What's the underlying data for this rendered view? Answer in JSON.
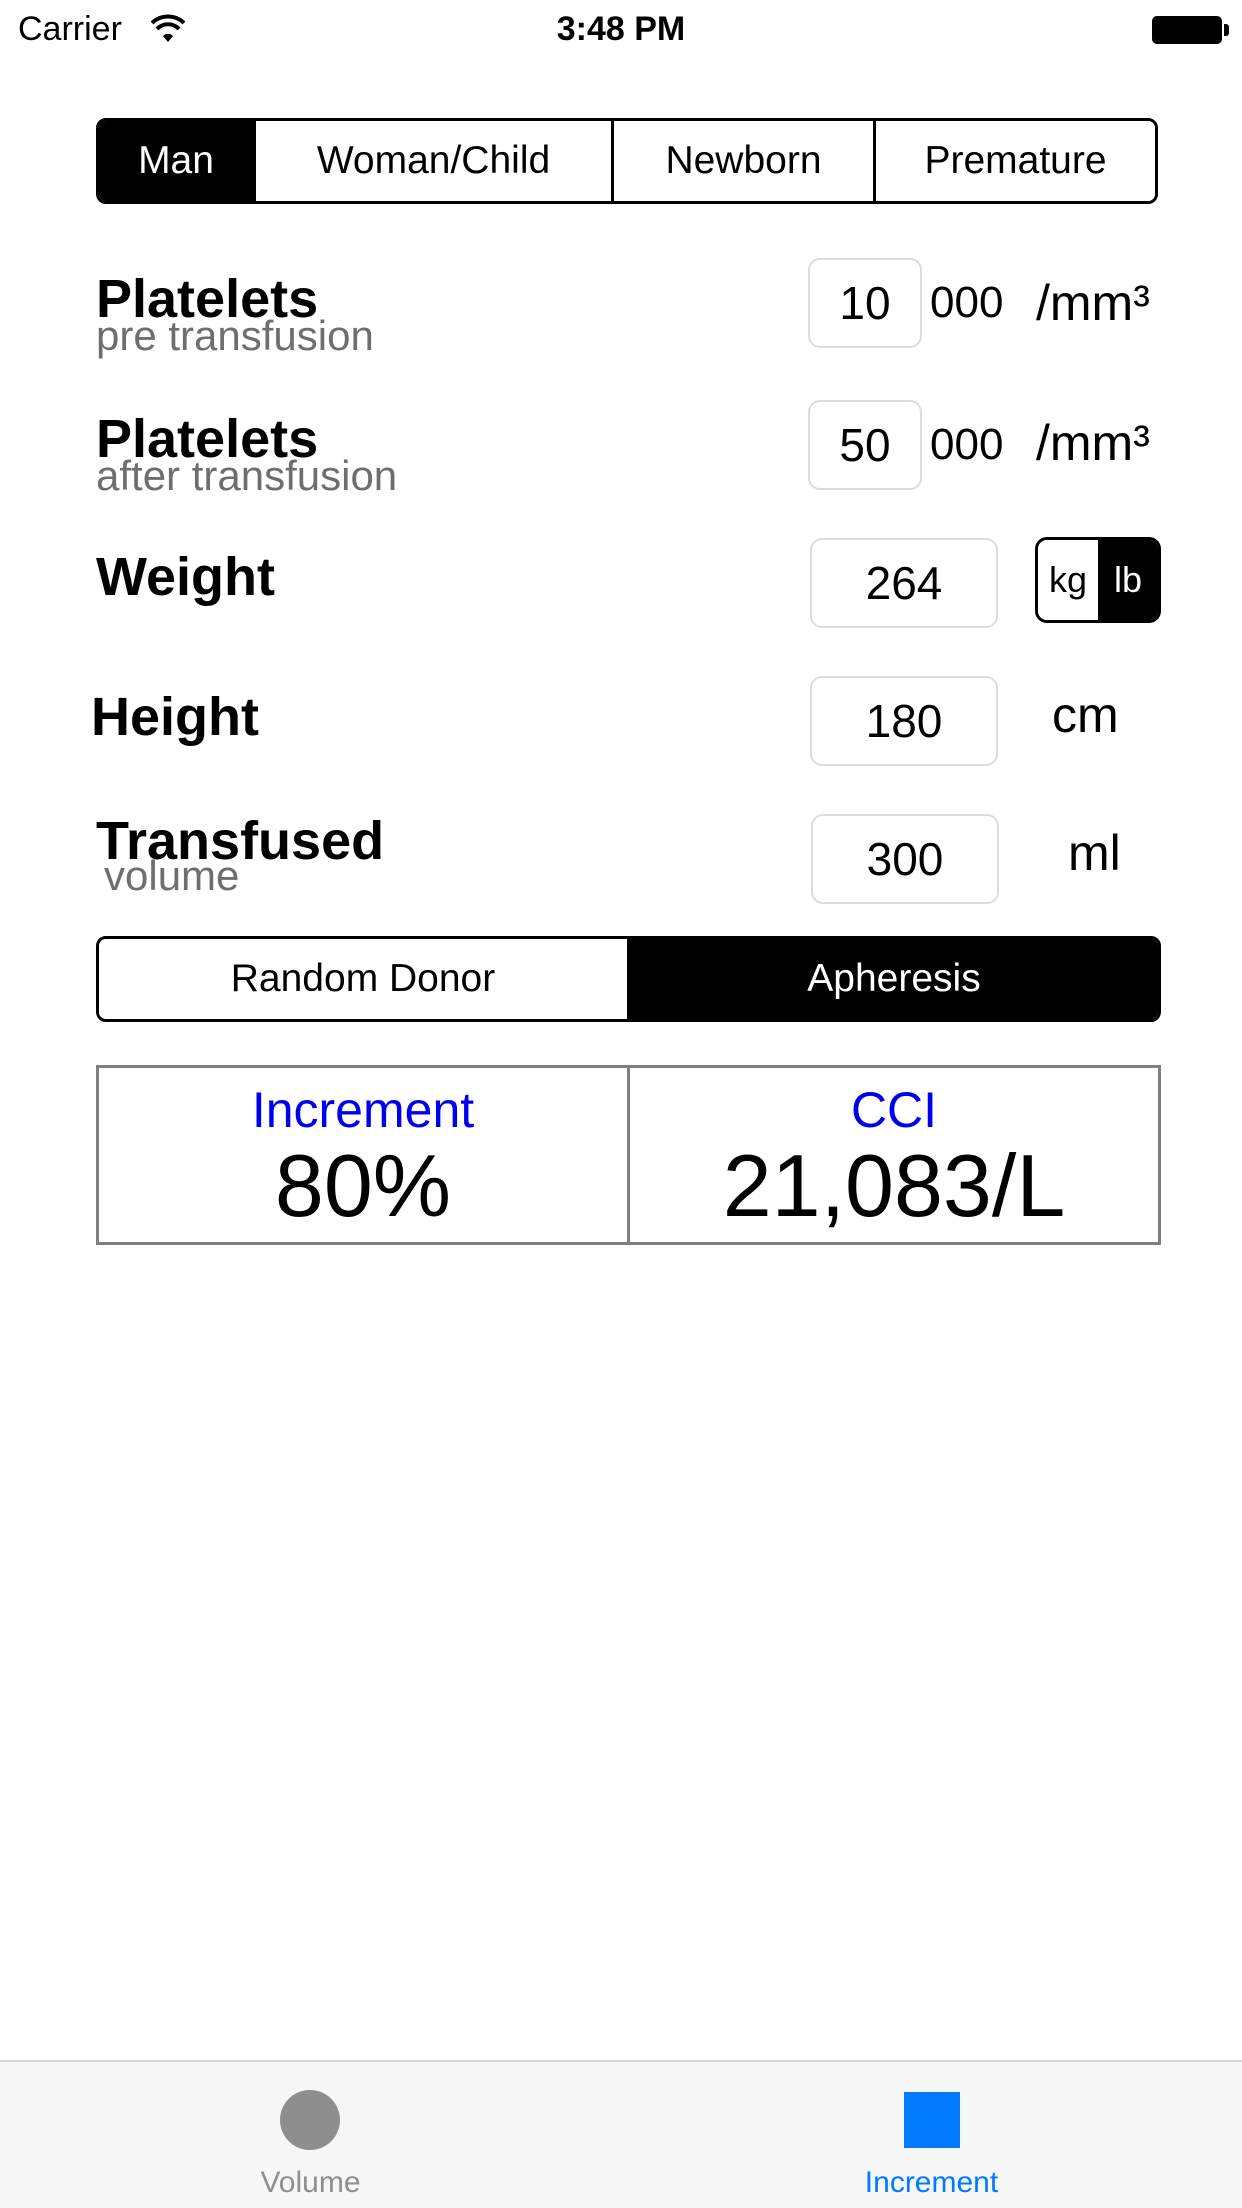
{
  "status_bar": {
    "carrier": "Carrier",
    "time": "3:48 PM"
  },
  "patient_types": [
    {
      "label": "Man",
      "selected": true
    },
    {
      "label": "Woman/Child",
      "selected": false
    },
    {
      "label": "Newborn",
      "selected": false
    },
    {
      "label": "Premature",
      "selected": false
    }
  ],
  "platelets_pre": {
    "label": "Platelets",
    "sublabel": "pre transfusion",
    "value": "10",
    "suffix": "000",
    "unit": "/mm³"
  },
  "platelets_after": {
    "label": "Platelets",
    "sublabel": "after transfusion",
    "value": "50",
    "suffix": "000",
    "unit": "/mm³"
  },
  "weight": {
    "label": "Weight",
    "value": "264",
    "units": [
      "kg",
      "lb"
    ],
    "selected_unit": "lb"
  },
  "height": {
    "label": "Height",
    "value": "180",
    "unit": "cm"
  },
  "transfused": {
    "label": "Transfused",
    "sublabel": "volume",
    "value": "300",
    "unit": "ml"
  },
  "donor_types": [
    {
      "label": "Random Donor",
      "selected": false
    },
    {
      "label": "Apheresis",
      "selected": true
    }
  ],
  "results": {
    "increment_label": "Increment",
    "increment_value": "80%",
    "cci_label": "CCI",
    "cci_value": "21,083/L"
  },
  "tabs": {
    "volume_label": "Volume",
    "increment_label": "Increment",
    "active": "Increment"
  },
  "colors": {
    "accent_blue": "#007aff",
    "result_label_blue": "#0000ee",
    "inactive_gray": "#8e8e8e"
  }
}
